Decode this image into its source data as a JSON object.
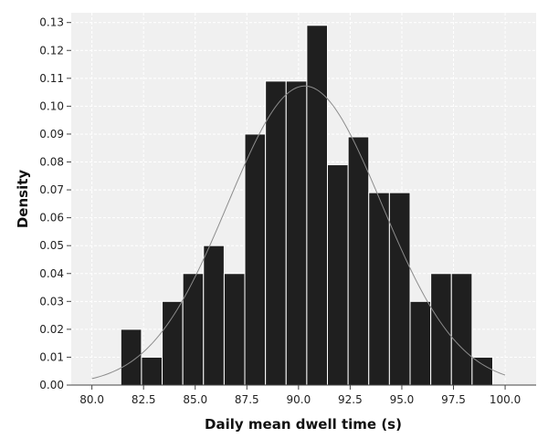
{
  "chart_data": {
    "type": "histogram",
    "xlabel": "Daily mean dwell time (s)",
    "ylabel": "Density",
    "xlim": [
      79.0,
      101.5
    ],
    "ylim": [
      0,
      0.1335
    ],
    "grid": true,
    "x_ticks": [
      80.0,
      82.5,
      85.0,
      87.5,
      90.0,
      92.5,
      95.0,
      97.5,
      100.0
    ],
    "x_tick_labels": [
      "80.0",
      "82.5",
      "85.0",
      "87.5",
      "90.0",
      "92.5",
      "95.0",
      "97.5",
      "100.0"
    ],
    "y_ticks": [
      0.0,
      0.01,
      0.02,
      0.03,
      0.04,
      0.05,
      0.06,
      0.07,
      0.08,
      0.09,
      0.1,
      0.11,
      0.12,
      0.13
    ],
    "y_tick_labels": [
      "0.00",
      "0.01",
      "0.02",
      "0.03",
      "0.04",
      "0.05",
      "0.06",
      "0.07",
      "0.08",
      "0.09",
      "0.10",
      "0.11",
      "0.12",
      "0.13"
    ],
    "bin_edges": [
      81.4,
      82.4,
      83.4,
      84.4,
      85.4,
      86.4,
      87.4,
      88.4,
      89.4,
      90.4,
      91.4,
      92.4,
      93.4,
      94.4,
      95.4,
      96.4,
      97.4,
      98.4,
      99.4,
      100.4
    ],
    "densities": [
      0.02,
      0.01,
      0.03,
      0.04,
      0.05,
      0.04,
      0.09,
      0.109,
      0.109,
      0.129,
      0.079,
      0.089,
      0.069,
      0.069,
      0.03,
      0.04,
      0.04,
      0.01,
      0.0,
      0.01
    ],
    "normal_fit": {
      "mean": 90.3,
      "sd": 3.72,
      "x_range": [
        80.0,
        100.0
      ]
    },
    "colors": {
      "bar_fill": "#1f1f1f",
      "bar_edge": "#ffffff",
      "curve": "#8c8c8c",
      "plot_background": "#f0f0f0",
      "grid": "#ffffff"
    }
  }
}
